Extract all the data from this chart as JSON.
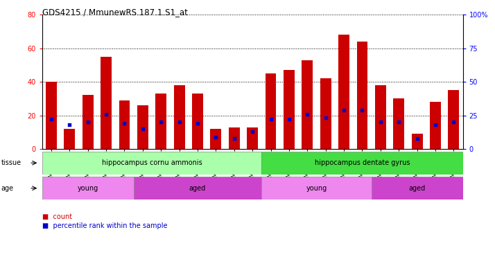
{
  "title": "GDS4215 / MmunewRS.187.1.S1_at",
  "samples": [
    "GSM297138",
    "GSM297139",
    "GSM297140",
    "GSM297141",
    "GSM297142",
    "GSM297143",
    "GSM297144",
    "GSM297145",
    "GSM297146",
    "GSM297147",
    "GSM297148",
    "GSM297149",
    "GSM297150",
    "GSM297151",
    "GSM297152",
    "GSM297153",
    "GSM297154",
    "GSM297155",
    "GSM297156",
    "GSM297157",
    "GSM297158",
    "GSM297159",
    "GSM297160"
  ],
  "count_values": [
    40,
    12,
    32,
    55,
    29,
    26,
    33,
    38,
    33,
    12,
    13,
    13,
    45,
    47,
    53,
    42,
    68,
    64,
    38,
    30,
    9,
    28,
    35
  ],
  "percentile_values": [
    22,
    18,
    20,
    26,
    19,
    15,
    20,
    20,
    19,
    9,
    8,
    13,
    22,
    22,
    26,
    23,
    29,
    29,
    20,
    20,
    8,
    18,
    20
  ],
  "ylim_left": [
    0,
    80
  ],
  "ylim_right": [
    0,
    100
  ],
  "yticks_left": [
    0,
    20,
    40,
    60,
    80
  ],
  "yticks_right": [
    0,
    25,
    50,
    75,
    100
  ],
  "ytick_labels_right": [
    "0",
    "25",
    "50",
    "75",
    "100%"
  ],
  "bar_color": "#cc0000",
  "marker_color": "#0000cc",
  "grid_color": "#000000",
  "tissue_groups": [
    {
      "label": "hippocampus cornu ammonis",
      "start": 0,
      "end": 12,
      "color": "#aaffaa"
    },
    {
      "label": "hippocampus dentate gyrus",
      "start": 12,
      "end": 23,
      "color": "#44dd44"
    }
  ],
  "age_groups": [
    {
      "label": "young",
      "start": 0,
      "end": 5,
      "color": "#ee88ee"
    },
    {
      "label": "aged",
      "start": 5,
      "end": 12,
      "color": "#cc44cc"
    },
    {
      "label": "young",
      "start": 12,
      "end": 18,
      "color": "#ee88ee"
    },
    {
      "label": "aged",
      "start": 18,
      "end": 23,
      "color": "#cc44cc"
    }
  ],
  "tissue_label": "tissue",
  "age_label": "age",
  "legend_count_label": "count",
  "legend_pct_label": "percentile rank within the sample",
  "bg_color": "#ffffff",
  "plot_bg_color": "#ffffff"
}
